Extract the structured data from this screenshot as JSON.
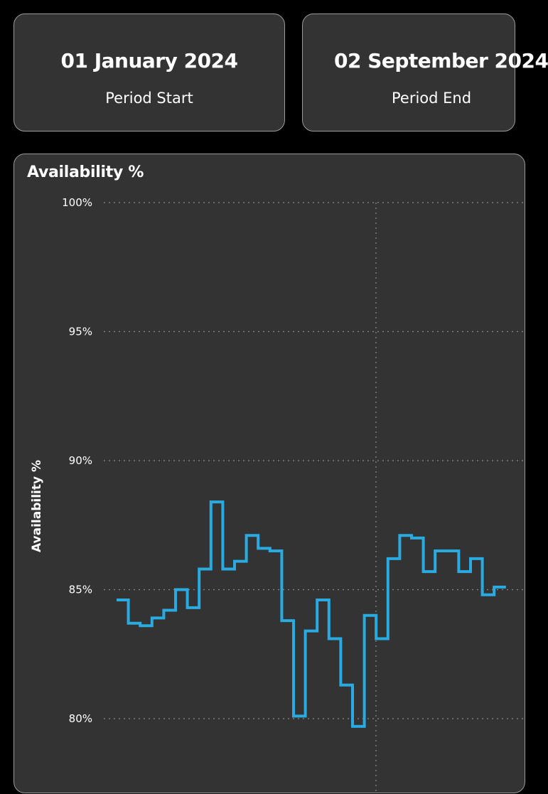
{
  "period_start": {
    "value": "01 January 2024",
    "label": "Period Start"
  },
  "period_end": {
    "value": "02 September 2024",
    "label": "Period End"
  },
  "colors": {
    "background": "#000000",
    "card": "#333333",
    "card_border": "#9a9a9a",
    "line": "#29abe2",
    "grid": "#8a8a8a",
    "text": "#ffffff"
  },
  "chart_data": {
    "type": "line",
    "title": "Availability %",
    "xlabel": "",
    "ylabel": "Availability %",
    "ylim": [
      78.5,
      100
    ],
    "yticks": [
      {
        "value": 100,
        "label": "100%"
      },
      {
        "value": 95,
        "label": "95%"
      },
      {
        "value": 90,
        "label": "90%"
      },
      {
        "value": 85,
        "label": "85%"
      },
      {
        "value": 80,
        "label": "80%"
      }
    ],
    "grid": true,
    "line_style": "step",
    "series": [
      {
        "values": [
          84.6,
          83.7,
          83.6,
          83.9,
          84.2,
          85.0,
          84.3,
          85.8,
          88.4,
          85.8,
          86.1,
          87.1,
          86.6,
          86.5,
          83.8,
          80.1,
          83.4,
          84.6,
          83.1,
          81.3,
          79.7,
          84.0,
          83.1,
          86.2,
          87.1,
          87.0,
          85.7,
          86.5,
          86.5,
          85.7,
          86.2,
          84.8,
          85.1
        ]
      }
    ]
  }
}
